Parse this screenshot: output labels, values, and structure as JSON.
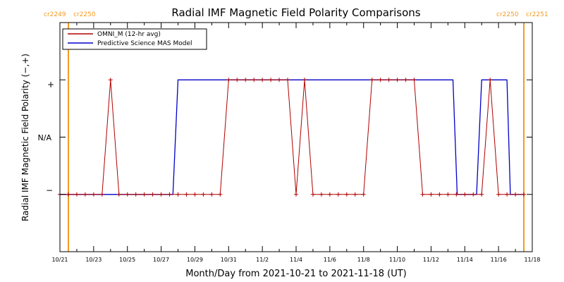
{
  "chart_data": {
    "type": "line",
    "title": "Radial IMF Magnetic Field Polarity Comparisons",
    "xlabel": "Month/Day from 2021-10-21 to 2021-11-18 (UT)",
    "ylabel": "Radial IMF Magnetic Field Polarity (−,+)",
    "x_range": [
      "2021-10-21",
      "2021-11-18"
    ],
    "x_tick_labels": [
      "10/21",
      "10/23",
      "10/25",
      "10/27",
      "10/29",
      "10/31",
      "11/2",
      "11/4",
      "11/6",
      "11/8",
      "11/10",
      "11/12",
      "11/14",
      "11/16",
      "11/18"
    ],
    "y_categories": [
      {
        "label": "−",
        "value": -1
      },
      {
        "label": "N/A",
        "value": 0
      },
      {
        "label": "+",
        "value": 1
      }
    ],
    "ylim": [
      -2,
      2
    ],
    "legend": {
      "placement": "top-left",
      "entries": [
        {
          "label": "OMNI_M (12-hr avg)",
          "color": "#b00000"
        },
        {
          "label": "Predictive Science MAS Model",
          "color": "#0000c8"
        }
      ]
    },
    "carrington_markers": [
      {
        "day": 0.5,
        "label_left": "cr2249",
        "label_right": "cr2250"
      },
      {
        "day": 27.5,
        "label_left": "cr2250",
        "label_right": "cr2251"
      }
    ],
    "colors": {
      "omni": "#b00000",
      "model": "#0000c8",
      "marker": "#f39a1f",
      "axis": "#000000"
    },
    "series": [
      {
        "name": "OMNI_M (12-hr avg)",
        "days": [
          0.0,
          0.5,
          1.0,
          1.5,
          2.0,
          2.5,
          3.0,
          3.5,
          4.0,
          4.5,
          5.0,
          5.5,
          6.0,
          6.5,
          7.0,
          7.5,
          8.0,
          8.5,
          9.0,
          9.5,
          10.0,
          10.5,
          11.0,
          11.5,
          12.0,
          12.5,
          13.0,
          13.5,
          14.0,
          14.5,
          15.0,
          15.5,
          16.0,
          16.5,
          17.0,
          17.5,
          18.0,
          18.5,
          19.0,
          19.5,
          20.0,
          20.5,
          21.0,
          21.5,
          22.0,
          22.5,
          23.0,
          23.5,
          24.0,
          24.5,
          25.0,
          25.5,
          26.0,
          26.5,
          27.0,
          27.5
        ],
        "values": [
          -1,
          -1,
          -1,
          -1,
          -1,
          -1,
          1,
          -1,
          -1,
          -1,
          -1,
          -1,
          -1,
          -1,
          -1,
          -1,
          -1,
          -1,
          -1,
          -1,
          1,
          1,
          1,
          1,
          1,
          1,
          1,
          1,
          -1,
          1,
          -1,
          -1,
          -1,
          -1,
          -1,
          -1,
          -1,
          1,
          1,
          1,
          1,
          1,
          1,
          -1,
          -1,
          -1,
          -1,
          -1,
          -1,
          -1,
          -1,
          1,
          -1,
          -1,
          -1,
          -1
        ],
        "marker": "plus"
      },
      {
        "name": "Predictive Science MAS Model",
        "points": [
          [
            0,
            -1
          ],
          [
            6.7,
            -1
          ],
          [
            7.0,
            1
          ],
          [
            23.3,
            1
          ],
          [
            23.55,
            -1
          ],
          [
            24.7,
            -1
          ],
          [
            25.0,
            1
          ],
          [
            26.5,
            1
          ],
          [
            26.7,
            -1
          ],
          [
            27.5,
            -1
          ]
        ]
      }
    ]
  }
}
